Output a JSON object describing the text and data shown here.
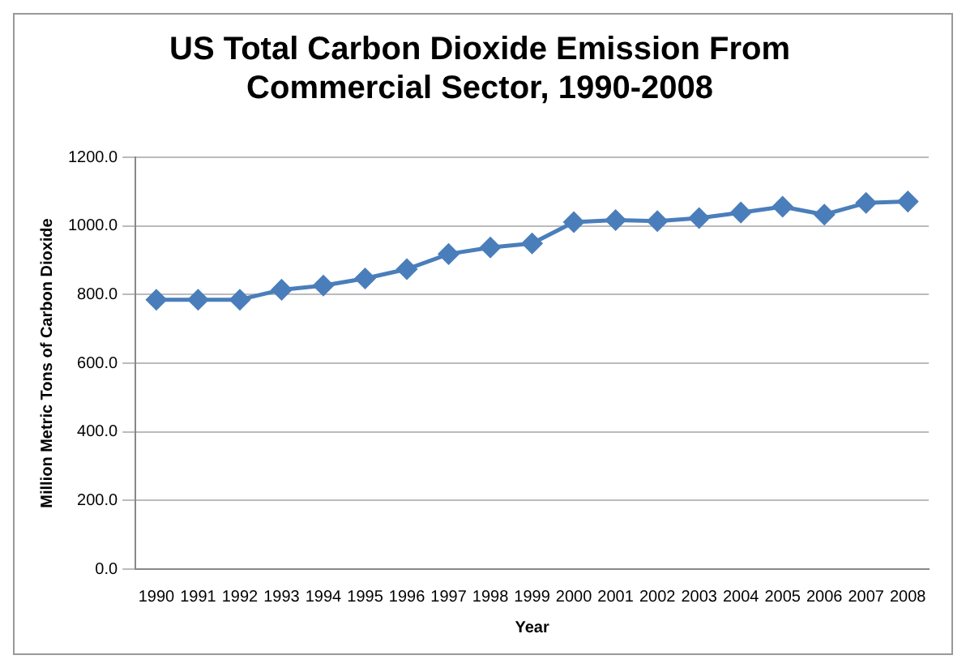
{
  "chart_data": {
    "type": "line",
    "title": [
      "US Total Carbon Dioxide Emission From",
      "Commercial Sector, 1990-2008"
    ],
    "xlabel": "Year",
    "ylabel": "Million Metric Tons of Carbon Dioxide",
    "categories": [
      "1990",
      "1991",
      "1992",
      "1993",
      "1994",
      "1995",
      "1996",
      "1997",
      "1998",
      "1999",
      "2000",
      "2001",
      "2002",
      "2003",
      "2004",
      "2005",
      "2006",
      "2007",
      "2008"
    ],
    "series": [
      {
        "color": "#4a7ebb",
        "values": [
          785,
          785,
          785,
          814,
          826,
          847,
          874,
          918,
          937,
          949,
          1011,
          1017,
          1014,
          1023,
          1039,
          1056,
          1033,
          1067,
          1071
        ]
      }
    ],
    "ylim": [
      0,
      1200
    ],
    "yticks": [
      {
        "value": 0,
        "label": "0.0"
      },
      {
        "value": 200,
        "label": "200.0"
      },
      {
        "value": 400,
        "label": "400.0"
      },
      {
        "value": 600,
        "label": "600.0"
      },
      {
        "value": 800,
        "label": "800.0"
      },
      {
        "value": 1000,
        "label": "1000.0"
      },
      {
        "value": 1200,
        "label": "1200.0"
      }
    ],
    "grid": "y",
    "legend": false,
    "marker": "diamond",
    "line_style": "solid"
  }
}
